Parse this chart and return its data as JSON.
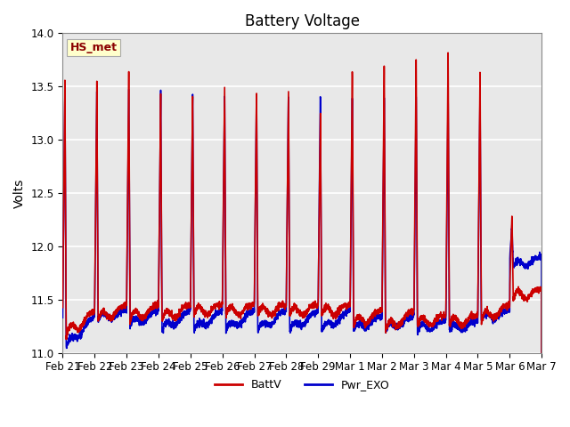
{
  "title": "Battery Voltage",
  "ylabel": "Volts",
  "ylim": [
    11.0,
    14.0
  ],
  "yticks": [
    11.0,
    11.5,
    12.0,
    12.5,
    13.0,
    13.5,
    14.0
  ],
  "xtick_labels": [
    "Feb 21",
    "Feb 22",
    "Feb 23",
    "Feb 24",
    "Feb 25",
    "Feb 26",
    "Feb 27",
    "Feb 28",
    "Feb 29",
    "Mar 1",
    "Mar 2",
    "Mar 3",
    "Mar 4",
    "Mar 5",
    "Mar 6",
    "Mar 7"
  ],
  "batt_color": "#cc0000",
  "pwr_color": "#0000cc",
  "line_width": 1.2,
  "bg_color": "#e8e8e8",
  "annotation_box_color": "#ffffcc",
  "annotation_text": "HS_met",
  "annotation_text_color": "#8b0000",
  "legend_labels": [
    "BattV",
    "Pwr_EXO"
  ],
  "title_fontsize": 12,
  "label_fontsize": 10,
  "tick_fontsize": 8.5
}
